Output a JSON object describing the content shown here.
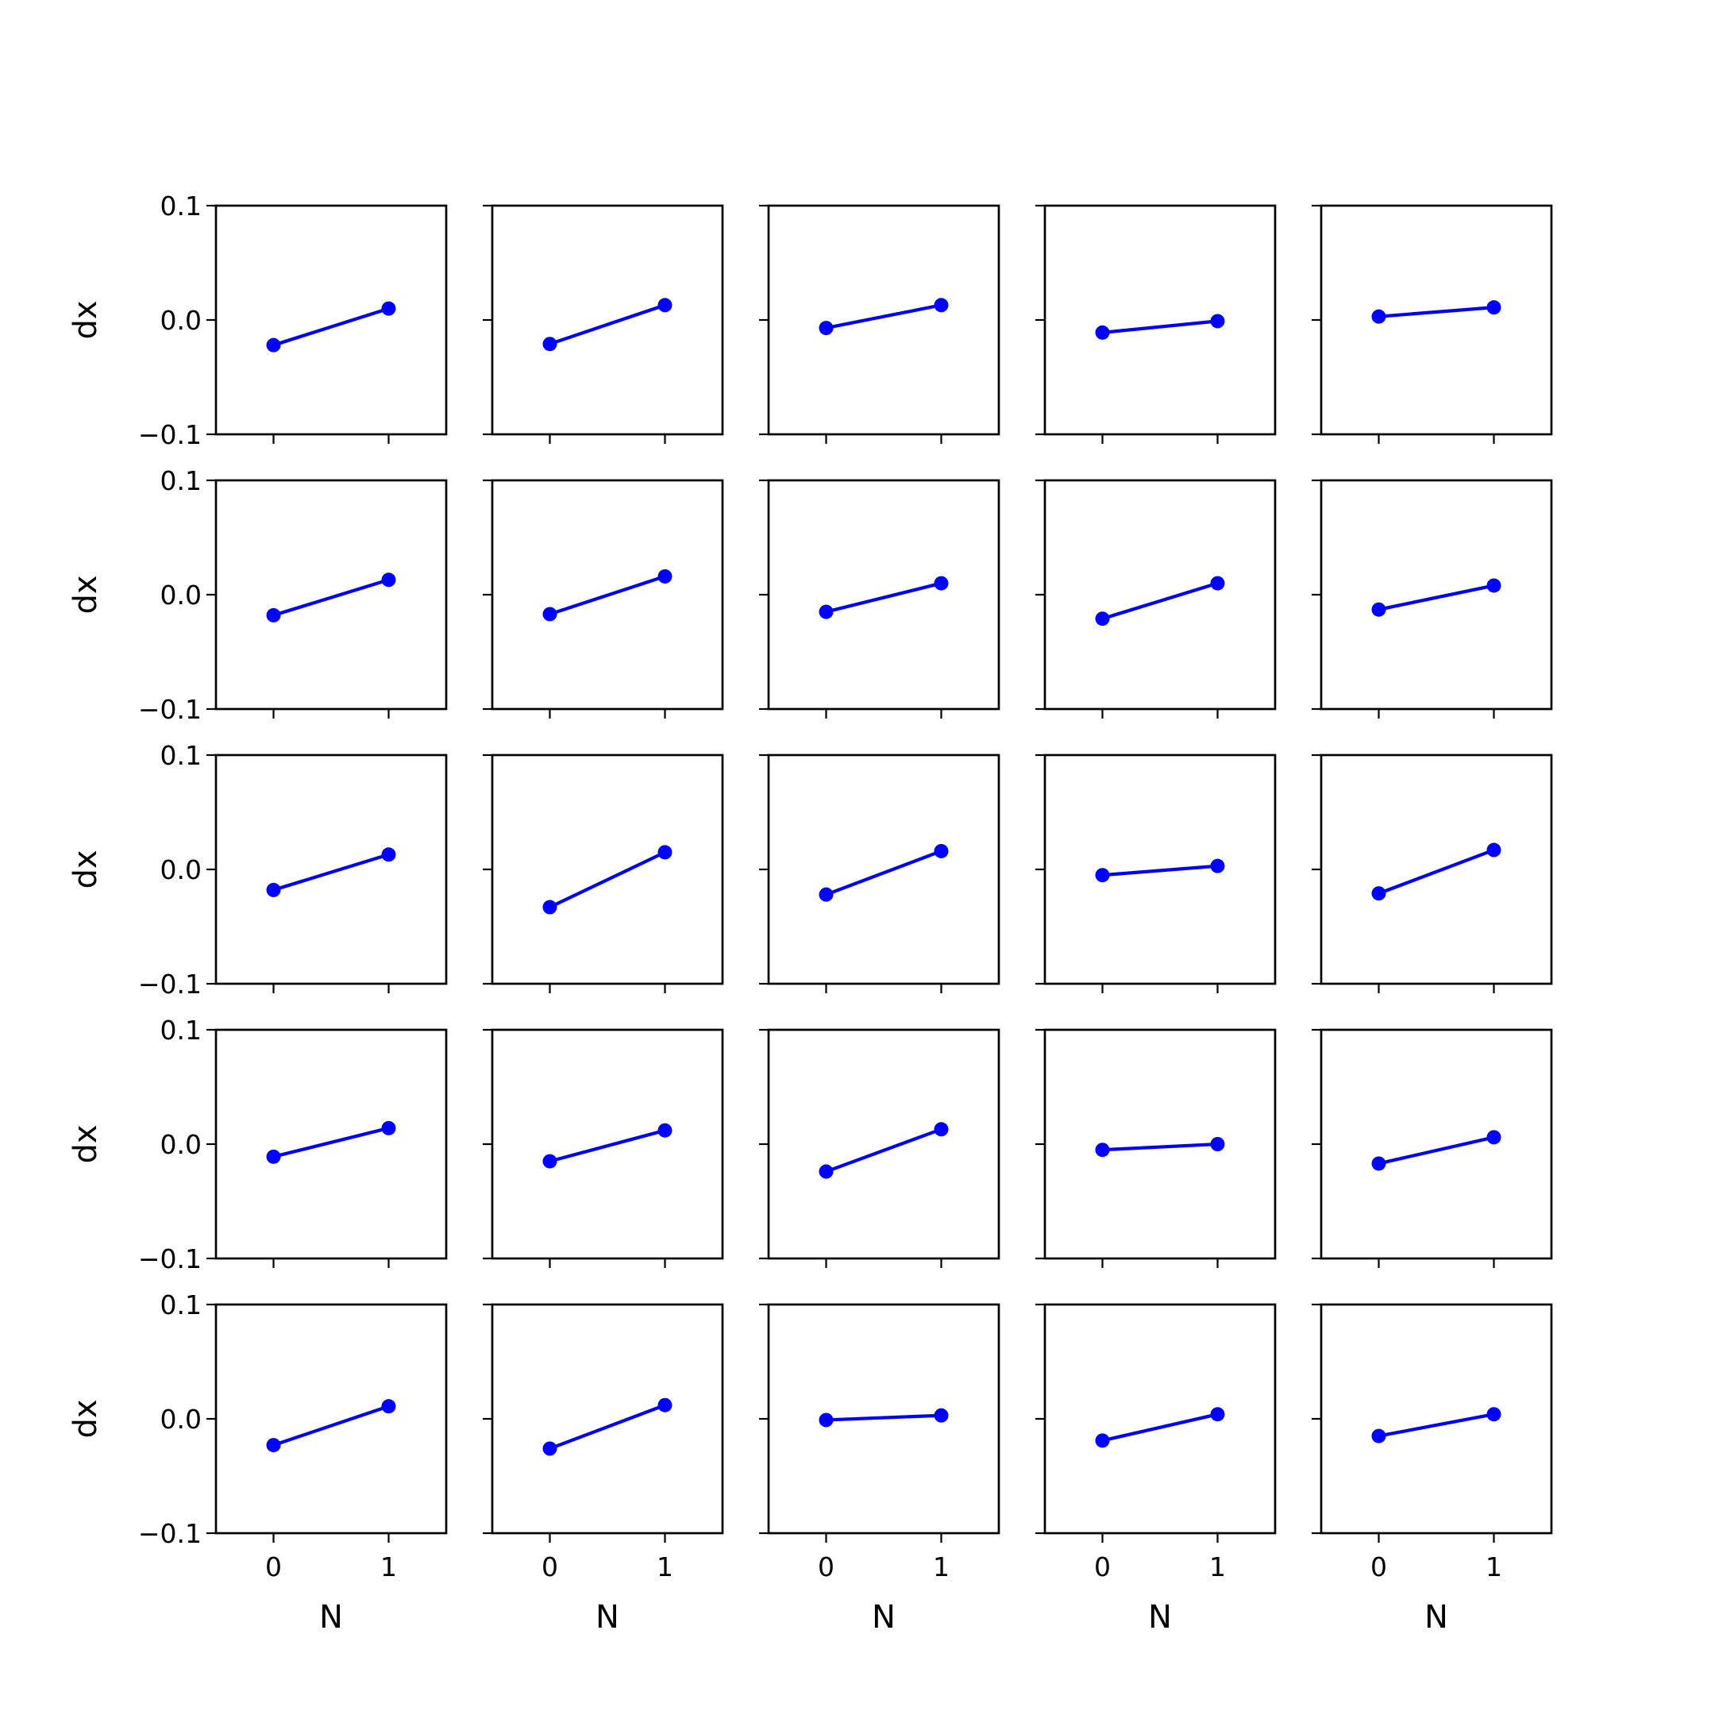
{
  "chart_data": {
    "type": "line",
    "layout": {
      "rows": 5,
      "cols": 5
    },
    "color": "#0000ff",
    "xlabel": "N",
    "ylabel": "dx",
    "x": [
      0,
      1
    ],
    "xticks": [
      0,
      1
    ],
    "xtick_labels": [
      "0",
      "1"
    ],
    "xlim": [
      -0.5,
      1.5
    ],
    "ylim": [
      -0.1,
      0.1
    ],
    "yticks": [
      -0.1,
      0.0,
      0.1
    ],
    "ytick_labels": [
      "−0.1",
      "0.0",
      "0.1"
    ],
    "sharex": true,
    "sharey": true,
    "grid": false,
    "legend": false,
    "panels": [
      {
        "values": [
          -0.022,
          0.01
        ]
      },
      {
        "values": [
          -0.021,
          0.013
        ]
      },
      {
        "values": [
          -0.007,
          0.013
        ]
      },
      {
        "values": [
          -0.011,
          -0.001
        ]
      },
      {
        "values": [
          0.003,
          0.011
        ]
      },
      {
        "values": [
          -0.018,
          0.013
        ]
      },
      {
        "values": [
          -0.017,
          0.016
        ]
      },
      {
        "values": [
          -0.015,
          0.01
        ]
      },
      {
        "values": [
          -0.021,
          0.01
        ]
      },
      {
        "values": [
          -0.013,
          0.008
        ]
      },
      {
        "values": [
          -0.018,
          0.013
        ]
      },
      {
        "values": [
          -0.033,
          0.015
        ]
      },
      {
        "values": [
          -0.022,
          0.016
        ]
      },
      {
        "values": [
          -0.005,
          0.003
        ]
      },
      {
        "values": [
          -0.021,
          0.017
        ]
      },
      {
        "values": [
          -0.011,
          0.014
        ]
      },
      {
        "values": [
          -0.015,
          0.012
        ]
      },
      {
        "values": [
          -0.024,
          0.013
        ]
      },
      {
        "values": [
          -0.005,
          -0.0
        ]
      },
      {
        "values": [
          -0.017,
          0.006
        ]
      },
      {
        "values": [
          -0.023,
          0.011
        ]
      },
      {
        "values": [
          -0.026,
          0.012
        ]
      },
      {
        "values": [
          -0.001,
          0.003
        ]
      },
      {
        "values": [
          -0.019,
          0.004
        ]
      },
      {
        "values": [
          -0.015,
          0.004
        ]
      }
    ]
  }
}
